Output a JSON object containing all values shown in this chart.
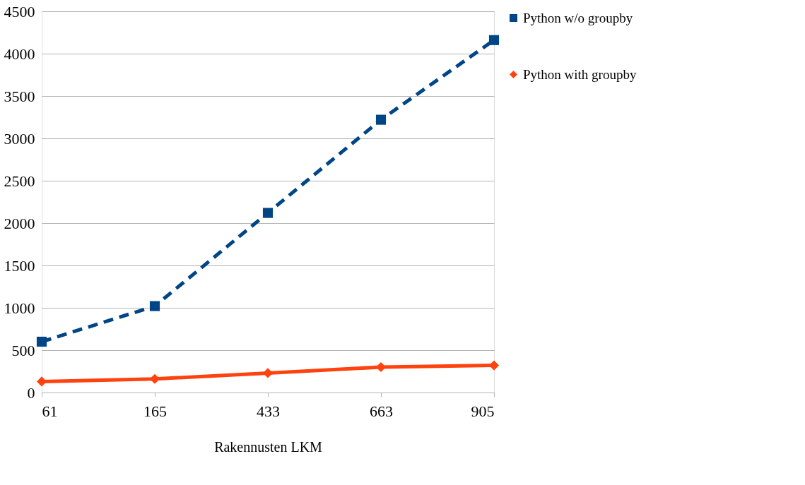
{
  "chart_data": {
    "type": "line",
    "xlabel": "Rakennusten LKM",
    "categories": [
      "61",
      "165",
      "433",
      "663",
      "905"
    ],
    "series": [
      {
        "name": "Python w/o groupby",
        "color": "#004586",
        "values": [
          600,
          1020,
          2120,
          3220,
          4160
        ],
        "line_style": "dashed",
        "marker": "square"
      },
      {
        "name": "Python with groupby",
        "color": "#ff420e",
        "values": [
          130,
          160,
          230,
          300,
          320
        ],
        "line_style": "solid",
        "marker": "diamond"
      }
    ],
    "ylim": [
      0,
      4500
    ],
    "yticks": [
      0,
      500,
      1000,
      1500,
      2000,
      2500,
      3000,
      3500,
      4000,
      4500
    ],
    "grid": "y",
    "legend": "right"
  }
}
